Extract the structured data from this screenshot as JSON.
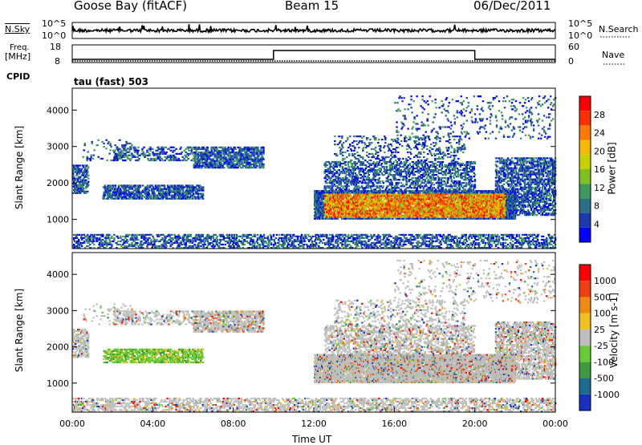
{
  "header": {
    "station": "Goose Bay (fitACF)",
    "beam": "Beam 15",
    "date": "06/Dec/2011"
  },
  "top_panels": {
    "nsky_label": "N.Sky",
    "nsky_tick_top": "10^5",
    "nsky_tick_bottom": "10^0",
    "nsearch_label": "N.Search",
    "nsearch_tick_top": "10^5",
    "nsearch_tick_bottom": "10^0",
    "freq_label_1": "Freq.",
    "freq_label_2": "[MHz]",
    "freq_tick_top": "18",
    "freq_tick_bottom": "8",
    "nave_label": "Nave",
    "nave_tick_top": "60",
    "nave_tick_bottom": "0",
    "cpid_label": "CPID",
    "cpid_value": "tau (fast) 503"
  },
  "chart_data": [
    {
      "type": "heatmap",
      "name": "power",
      "ylabel": "Slant Range [km]",
      "ylim": [
        200,
        4600
      ],
      "yticks": [
        "1000",
        "2000",
        "3000",
        "4000"
      ],
      "colorbar_label": "Power [dB]",
      "colorbar_ticks": [
        "28",
        "24",
        "20",
        "16",
        "12",
        "8",
        "4"
      ],
      "colors": [
        "#0000ff",
        "#1a3ab0",
        "#2a6d8a",
        "#3c9a5a",
        "#7dc21f",
        "#c8d000",
        "#f5b800",
        "#ff7800",
        "#ff3000",
        "#ff0000"
      ]
    },
    {
      "type": "heatmap",
      "name": "velocity",
      "ylabel": "Slant Range [km]",
      "ylim": [
        200,
        4600
      ],
      "yticks": [
        "1000",
        "2000",
        "3000",
        "4000"
      ],
      "colorbar_label": "Velocity [m s-1]",
      "colorbar_ticks": [
        "1000",
        "500",
        "100",
        "25",
        "-25",
        "-100",
        "-500",
        "-1000"
      ],
      "colors": [
        "#1830c0",
        "#1c6c90",
        "#3e9c3e",
        "#66cc33",
        "#bebebe",
        "#f0c020",
        "#f08a10",
        "#f04010",
        "#ff0000"
      ]
    }
  ],
  "time_axis": {
    "label": "Time UT",
    "ticks": [
      "00:00",
      "04:00",
      "08:00",
      "12:00",
      "16:00",
      "20:00",
      "00:00"
    ],
    "range_hours": [
      0,
      24
    ]
  }
}
